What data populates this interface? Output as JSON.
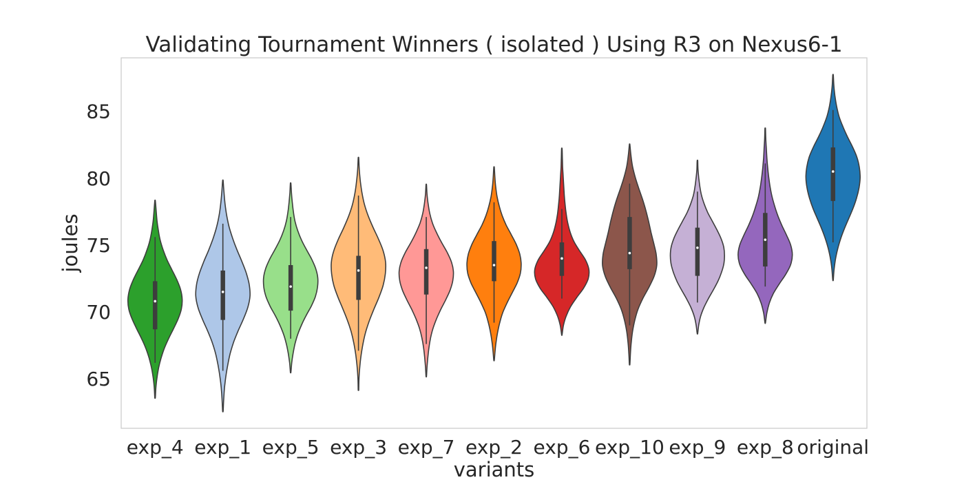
{
  "chart_data": {
    "type": "violin",
    "title": "Validating Tournament Winners ( isolated ) Using R3 on Nexus6-1",
    "xlabel": "variants",
    "ylabel": "joules",
    "ylim": [
      61.3,
      89.0
    ],
    "yticks": [
      65,
      70,
      75,
      80,
      85
    ],
    "ytick_labels": [
      "65",
      "70",
      "75",
      "80",
      "85"
    ],
    "grid": false,
    "legend": "none",
    "categories": [
      "exp_4",
      "exp_1",
      "exp_5",
      "exp_3",
      "exp_7",
      "exp_2",
      "exp_6",
      "exp_10",
      "exp_9",
      "exp_8",
      "original"
    ],
    "series": [
      {
        "category": "exp_4",
        "color": "#2ca02c",
        "kde_min": 63.6,
        "kde_max": 78.3,
        "whisker_low": 66.2,
        "q1": 68.7,
        "median": 70.8,
        "q3": 72.3,
        "whisker_high": 75.6,
        "density": [
          0.01,
          0.03,
          0.07,
          0.13,
          0.22,
          0.34,
          0.5,
          0.68,
          0.85,
          0.97,
          1.0,
          0.94,
          0.8,
          0.62,
          0.44,
          0.3,
          0.19,
          0.12,
          0.07,
          0.04,
          0.01
        ]
      },
      {
        "category": "exp_1",
        "color": "#aec7e8",
        "kde_min": 62.6,
        "kde_max": 79.8,
        "whisker_low": 65.6,
        "q1": 69.4,
        "median": 71.5,
        "q3": 73.1,
        "whisker_high": 76.6,
        "density": [
          0.01,
          0.03,
          0.06,
          0.11,
          0.18,
          0.27,
          0.4,
          0.57,
          0.76,
          0.92,
          1.0,
          0.97,
          0.86,
          0.7,
          0.52,
          0.36,
          0.23,
          0.14,
          0.08,
          0.04,
          0.01
        ]
      },
      {
        "category": "exp_5",
        "color": "#98df8a",
        "kde_min": 65.5,
        "kde_max": 79.6,
        "whisker_low": 68.0,
        "q1": 70.1,
        "median": 71.9,
        "q3": 73.5,
        "whisker_high": 77.1,
        "density": [
          0.01,
          0.04,
          0.09,
          0.16,
          0.26,
          0.4,
          0.57,
          0.76,
          0.91,
          0.99,
          1.0,
          0.92,
          0.77,
          0.58,
          0.4,
          0.26,
          0.16,
          0.1,
          0.06,
          0.03,
          0.01
        ]
      },
      {
        "category": "exp_3",
        "color": "#ffbb78",
        "kde_min": 64.2,
        "kde_max": 81.5,
        "whisker_low": 67.1,
        "q1": 70.9,
        "median": 73.1,
        "q3": 74.2,
        "whisker_high": 78.7,
        "density": [
          0.01,
          0.02,
          0.05,
          0.1,
          0.17,
          0.27,
          0.41,
          0.58,
          0.76,
          0.91,
          0.99,
          1.0,
          0.91,
          0.74,
          0.54,
          0.36,
          0.22,
          0.13,
          0.07,
          0.03,
          0.01
        ]
      },
      {
        "category": "exp_7",
        "color": "#ff9896",
        "kde_min": 65.2,
        "kde_max": 79.5,
        "whisker_low": 67.6,
        "q1": 71.3,
        "median": 73.3,
        "q3": 74.7,
        "whisker_high": 77.1,
        "density": [
          0.01,
          0.03,
          0.06,
          0.1,
          0.16,
          0.25,
          0.38,
          0.54,
          0.72,
          0.88,
          0.98,
          1.0,
          0.92,
          0.76,
          0.56,
          0.38,
          0.23,
          0.13,
          0.07,
          0.03,
          0.01
        ]
      },
      {
        "category": "exp_2",
        "color": "#ff7f0e",
        "kde_min": 66.4,
        "kde_max": 80.8,
        "whisker_low": 69.2,
        "q1": 72.3,
        "median": 73.5,
        "q3": 75.3,
        "whisker_high": 78.2,
        "density": [
          0.01,
          0.04,
          0.08,
          0.14,
          0.22,
          0.33,
          0.49,
          0.67,
          0.85,
          0.97,
          1.0,
          0.95,
          0.82,
          0.64,
          0.45,
          0.3,
          0.19,
          0.11,
          0.06,
          0.03,
          0.01
        ]
      },
      {
        "category": "exp_6",
        "color": "#d62728",
        "kde_min": 68.3,
        "kde_max": 82.2,
        "whisker_low": 71.0,
        "q1": 72.7,
        "median": 74.0,
        "q3": 75.2,
        "whisker_high": 77.7,
        "density": [
          0.01,
          0.06,
          0.16,
          0.32,
          0.55,
          0.8,
          0.97,
          1.0,
          0.88,
          0.66,
          0.45,
          0.31,
          0.22,
          0.16,
          0.12,
          0.09,
          0.07,
          0.05,
          0.03,
          0.02,
          0.01
        ]
      },
      {
        "category": "exp_10",
        "color": "#8c564b",
        "kde_min": 66.1,
        "kde_max": 82.5,
        "whisker_low": 69.0,
        "q1": 73.2,
        "median": 74.4,
        "q3": 77.1,
        "whisker_high": 79.6,
        "density": [
          0.01,
          0.03,
          0.06,
          0.11,
          0.19,
          0.31,
          0.49,
          0.71,
          0.9,
          1.0,
          0.98,
          0.89,
          0.79,
          0.7,
          0.6,
          0.48,
          0.34,
          0.21,
          0.11,
          0.05,
          0.01
        ]
      },
      {
        "category": "exp_9",
        "color": "#c5b0d5",
        "kde_min": 68.4,
        "kde_max": 81.3,
        "whisker_low": 70.7,
        "q1": 72.7,
        "median": 74.8,
        "q3": 76.3,
        "whisker_high": 79.0,
        "density": [
          0.01,
          0.05,
          0.12,
          0.24,
          0.4,
          0.58,
          0.75,
          0.88,
          0.97,
          1.0,
          0.97,
          0.87,
          0.72,
          0.55,
          0.38,
          0.25,
          0.15,
          0.09,
          0.05,
          0.02,
          0.01
        ]
      },
      {
        "category": "exp_8",
        "color": "#9467bd",
        "kde_min": 69.2,
        "kde_max": 83.7,
        "whisker_low": 71.9,
        "q1": 73.4,
        "median": 75.4,
        "q3": 77.4,
        "whisker_high": 81.1,
        "density": [
          0.01,
          0.06,
          0.15,
          0.3,
          0.52,
          0.76,
          0.94,
          1.0,
          0.94,
          0.79,
          0.62,
          0.47,
          0.35,
          0.25,
          0.18,
          0.13,
          0.09,
          0.06,
          0.04,
          0.02,
          0.01
        ]
      },
      {
        "category": "original",
        "color": "#1f77b4",
        "kde_min": 72.4,
        "kde_max": 87.7,
        "whisker_low": 75.2,
        "q1": 78.3,
        "median": 80.5,
        "q3": 82.3,
        "whisker_high": 85.1,
        "density": [
          0.01,
          0.04,
          0.09,
          0.17,
          0.28,
          0.42,
          0.58,
          0.74,
          0.87,
          0.96,
          1.0,
          0.97,
          0.88,
          0.72,
          0.53,
          0.36,
          0.22,
          0.13,
          0.07,
          0.03,
          0.01
        ]
      }
    ]
  }
}
